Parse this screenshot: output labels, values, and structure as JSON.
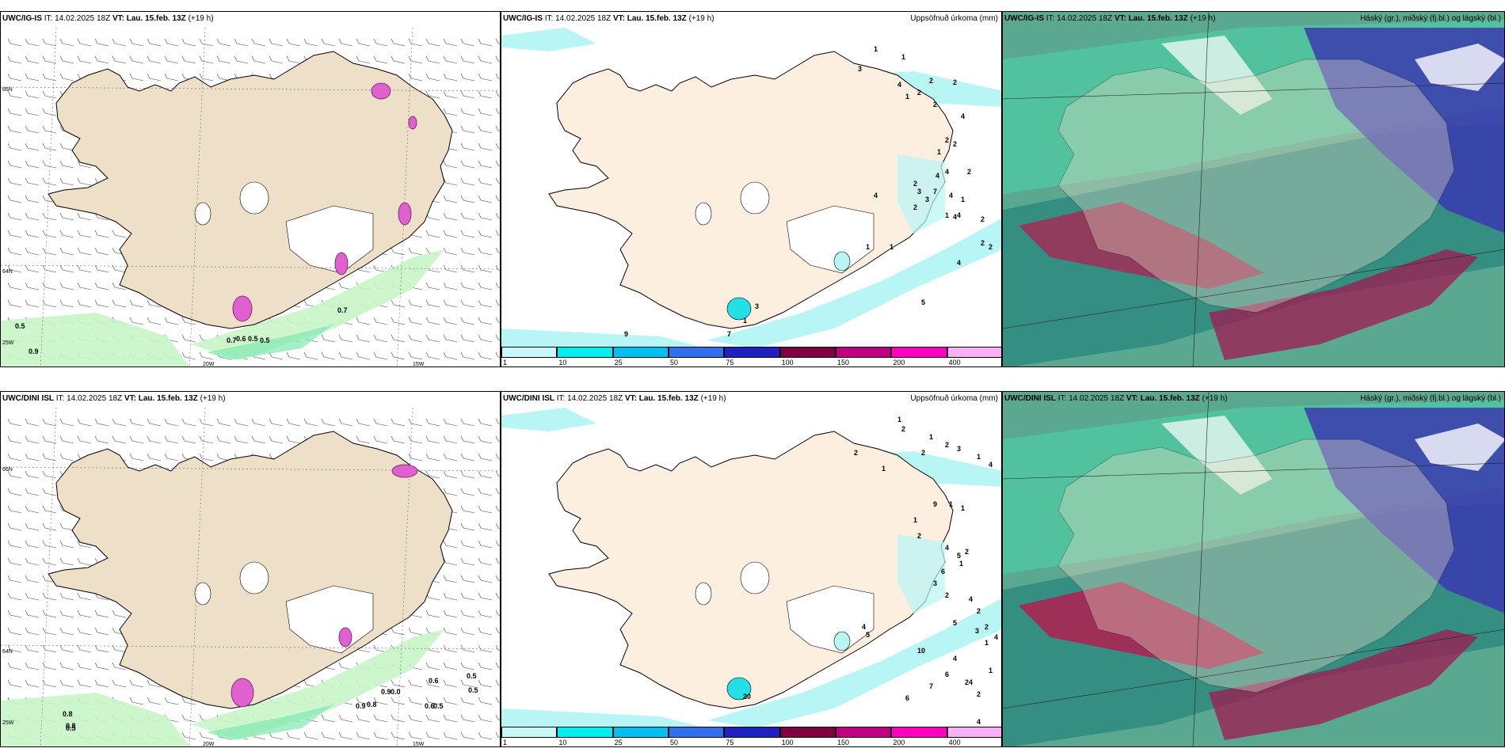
{
  "panels": [
    {
      "model": "UWC/IG-IS",
      "it_label": "IT:",
      "it": "14.02.2025 18Z",
      "vt_label": "VT:",
      "vt": "Lau. 15.feb. 13Z",
      "lead": "(+19 h)",
      "right_title": ""
    },
    {
      "model": "UWC/IG-IS",
      "it_label": "IT:",
      "it": "14.02.2025 18Z",
      "vt_label": "VT:",
      "vt": "Lau. 15.feb. 13Z",
      "lead": "(+19 h)",
      "right_title": "Uppsöfnuð úrkoma (mm)"
    },
    {
      "model": "UWC/IG-IS",
      "it_label": "IT:",
      "it": "14.02.2025 18Z",
      "vt_label": "VT:",
      "vt": "Lau. 15.feb. 13Z",
      "lead": "(+19 h)",
      "right_title": "Háský (gr.), miðský (fj.bl.) og lágský (bl.)"
    },
    {
      "model": "UWC/DINI ISL",
      "it_label": "IT:",
      "it": "14.02.2025 18Z",
      "vt_label": "VT:",
      "vt": "Lau. 15.feb. 13Z",
      "lead": "(+19 h)",
      "right_title": ""
    },
    {
      "model": "UWC/DINI ISL",
      "it_label": "IT:",
      "it": "14.02.2025 18Z",
      "vt_label": "VT:",
      "vt": "Lau. 15.feb. 13Z",
      "lead": "(+19 h)",
      "right_title": "Uppsöfnuð úrkoma (mm)"
    },
    {
      "model": "UWC/DINI ISL",
      "it_label": "IT:",
      "it": "14.02.2025 18Z",
      "vt_label": "VT:",
      "vt": "Lau. 15.feb. 13Z",
      "lead": "(+19 h)",
      "right_title": "Háský (gr.), miðský (fj.bl.) og lágský (bl.)"
    }
  ],
  "axis_labels": {
    "lon_20": "20W",
    "lon_15": "15W",
    "lat_66": "66N",
    "lat_64": "64N",
    "lon_25": "25W"
  },
  "colorbar": {
    "ticks": [
      "1",
      "10",
      "25",
      "50",
      "75",
      "100",
      "150",
      "200",
      "400"
    ],
    "colors": [
      "#c8f8f8",
      "#00f0f0",
      "#00c0f0",
      "#3070f0",
      "#2020c0",
      "#800040",
      "#c00080",
      "#ff00c0",
      "#f8b0f8"
    ]
  },
  "map1_labels": [
    "0.5",
    "0.9",
    "0.7",
    "0.7",
    "0.6",
    "0.5",
    "0.5"
  ],
  "map2_labels": [
    "3",
    "1",
    "1",
    "2",
    "2",
    "4",
    "2",
    "1",
    "2",
    "4",
    "2",
    "2",
    "1",
    "4",
    "7",
    "4",
    "4",
    "2",
    "1",
    "3",
    "3",
    "1",
    "2",
    "4",
    "4",
    "4",
    "2",
    "2",
    "4",
    "5",
    "9",
    "7",
    "1",
    "3",
    "2",
    "2",
    "1",
    "1"
  ],
  "map4_labels": [
    "0.8",
    "0.5",
    "0.9",
    "0.8",
    "0.9",
    "0.0",
    "0.5",
    "0.6",
    "0.5",
    "0.5",
    "0.6",
    "0.8"
  ],
  "map5_labels": [
    "1",
    "2",
    "1",
    "2",
    "2",
    "3",
    "1",
    "4",
    "1",
    "2",
    "9",
    "1",
    "1",
    "1",
    "2",
    "4",
    "5",
    "6",
    "1",
    "2",
    "3",
    "2",
    "4",
    "2",
    "2",
    "5",
    "3",
    "1",
    "4",
    "4",
    "4",
    "2",
    "1",
    "2",
    "4",
    "6",
    "7",
    "6",
    "10",
    "20",
    "4",
    "5"
  ],
  "colors": {
    "land": "#fcefe0",
    "land_dark": "#eedfc8",
    "precip_light": "#b8f5f5",
    "precip_mid": "#22e0e8",
    "green_light": "#c8f5c8",
    "green_mid": "#80e8b0",
    "pink": "#e060d0"
  }
}
